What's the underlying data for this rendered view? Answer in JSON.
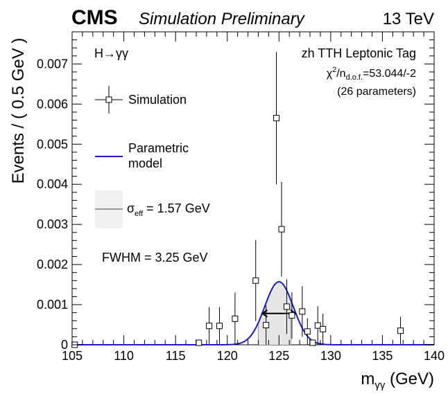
{
  "header": {
    "experiment": "CMS",
    "status": "Simulation Preliminary",
    "energy": "13 TeV"
  },
  "panel": {
    "process": "H→γγ",
    "category": "zh TTH Leptonic Tag",
    "chi2_prefix": "χ",
    "chi2_sup": "2",
    "chi2_slash": "/n",
    "chi2_sub": "d.o.f.",
    "chi2_value": "=53.044/-2",
    "params": "(26 parameters)",
    "fwhm": "FWHM = 3.25 GeV"
  },
  "legend": {
    "simulation": "Simulation",
    "model_line1": "Parametric",
    "model_line2": "model",
    "sigma_symbol": "σ",
    "sigma_sub": "eff",
    "sigma_value": " = 1.57 GeV"
  },
  "colors": {
    "model": "#1a1acc",
    "band": "#e6e6e6",
    "band_legend": "#f0f0f0",
    "sigma_line": "#999999"
  },
  "chart_data": {
    "type": "scatter",
    "title": "",
    "xlabel_main": "m",
    "xlabel_sub": "γγ",
    "xlabel_unit": " (GeV)",
    "ylabel": "Events / ( 0.5 GeV )",
    "xlim": [
      105,
      140
    ],
    "ylim": [
      0,
      0.0078
    ],
    "xticks": [
      105,
      110,
      115,
      120,
      125,
      130,
      135,
      140
    ],
    "yticks": [
      0,
      0.001,
      0.002,
      0.003,
      0.004,
      0.005,
      0.006,
      0.007
    ],
    "ytick_labels": [
      "0",
      "0.001",
      "0.002",
      "0.003",
      "0.004",
      "0.005",
      "0.006",
      "0.007"
    ],
    "series": [
      {
        "name": "Simulation",
        "points": [
          {
            "x": 105.25,
            "y": 0,
            "yerr": 0
          },
          {
            "x": 117.25,
            "y": 5e-05,
            "yerr": 4e-05
          },
          {
            "x": 118.25,
            "y": 0.00047,
            "yerr": 0.00047
          },
          {
            "x": 119.25,
            "y": 0.00047,
            "yerr": 0.00047
          },
          {
            "x": 120.75,
            "y": 0.00065,
            "yerr": 0.00065
          },
          {
            "x": 122.75,
            "y": 0.0016,
            "yerr": 0.00101
          },
          {
            "x": 123.75,
            "y": 0.00049,
            "yerr": 0.00049
          },
          {
            "x": 124.75,
            "y": 0.00565,
            "yerr": 0.00165
          },
          {
            "x": 125.25,
            "y": 0.00288,
            "yerr": 0.00118
          },
          {
            "x": 125.75,
            "y": 0.00095,
            "yerr": 0.00068
          },
          {
            "x": 126.25,
            "y": 0.00073,
            "yerr": 0.00058
          },
          {
            "x": 127.25,
            "y": 0.00083,
            "yerr": 0.00063
          },
          {
            "x": 127.75,
            "y": 0.00033,
            "yerr": 0.00033
          },
          {
            "x": 128.25,
            "y": 5e-05,
            "yerr": 4e-05
          },
          {
            "x": 128.75,
            "y": 0.00048,
            "yerr": 0.00048
          },
          {
            "x": 129.25,
            "y": 0.00039,
            "yerr": 0.00039
          },
          {
            "x": 136.75,
            "y": 0.00035,
            "yerr": 0.00035
          }
        ]
      },
      {
        "name": "Parametric model",
        "type": "line",
        "mean": 125.0,
        "sigma": 1.38,
        "peak": 0.00157
      }
    ],
    "sigma_eff_band": [
      123.0,
      126.15
    ],
    "fwhm_arrow": [
      123.4,
      126.6
    ],
    "fwhm_y": 0.00078
  }
}
